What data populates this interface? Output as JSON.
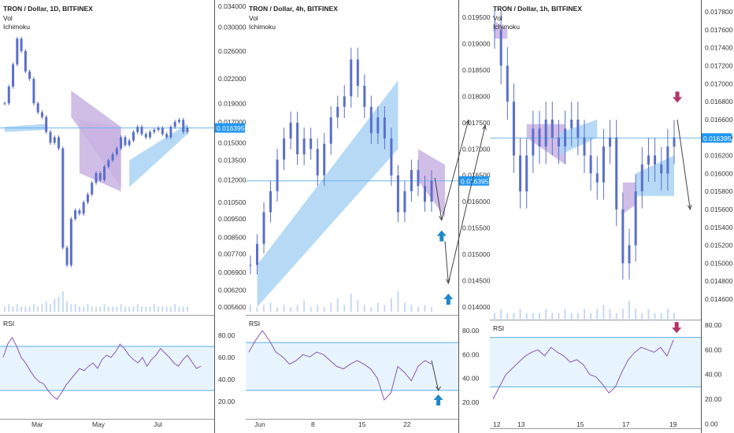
{
  "colors": {
    "candle": "#5b6fc9",
    "cloud_bull": "#a9d4f5",
    "cloud_bear": "#c9b3e3",
    "rsi_line": "#8a55b5",
    "rsi_band": "#e8f4fd",
    "rsi_band_line": "#5aaee8",
    "price_line": "#6fb5ea",
    "price_tag": "#2196f3",
    "up_arrow": "#1e88c8",
    "down_arrow": "#b5336b",
    "volume": "#c7d9f0",
    "grid_text": "#333333",
    "separator": "#555555"
  },
  "chart_data": [
    {
      "type": "line",
      "chart": "candlestick",
      "title": "TRON / Dollar, 1D, BITFINEX",
      "indicators": [
        "Vol",
        "Ichimoku"
      ],
      "price_label": "0.016395",
      "current_price": 0.016395,
      "yticks": [
        "0.034000",
        "0.030000",
        "0.026000",
        "0.022000",
        "0.019000",
        "0.017000",
        "0.015000",
        "0.013500",
        "0.012000",
        "0.010500",
        "0.009500",
        "0.008500",
        "0.007700",
        "0.006900",
        "0.006200",
        "0.005600"
      ],
      "yscale": "log",
      "xticks": [
        "Mar",
        "May",
        "Jul"
      ],
      "close": [
        0.019,
        0.021,
        0.024,
        0.028,
        0.026,
        0.023,
        0.022,
        0.019,
        0.018,
        0.0175,
        0.016,
        0.015,
        0.0155,
        0.0145,
        0.008,
        0.0072,
        0.0095,
        0.01,
        0.0098,
        0.0105,
        0.011,
        0.0118,
        0.0125,
        0.012,
        0.013,
        0.0135,
        0.014,
        0.0145,
        0.0155,
        0.0148,
        0.0152,
        0.016,
        0.0165,
        0.0158,
        0.0155,
        0.016,
        0.0162,
        0.0164,
        0.0158,
        0.0155,
        0.0165,
        0.017,
        0.0172,
        0.016,
        0.0164
      ],
      "cloud": [
        {
          "kind": "bull",
          "x": [
            0,
            10
          ],
          "top": [
            0.0165,
            0.0168
          ],
          "bottom": [
            0.016,
            0.0162
          ]
        },
        {
          "kind": "bear",
          "x": [
            16,
            28
          ],
          "top": [
            0.0205,
            0.0165
          ],
          "bottom": [
            0.0175,
            0.0115
          ]
        },
        {
          "kind": "bear",
          "x": [
            18,
            28
          ],
          "top": [
            0.0172,
            0.0165
          ],
          "bottom": [
            0.0125,
            0.0112
          ]
        },
        {
          "kind": "bull",
          "x": [
            30,
            44
          ],
          "top": [
            0.0135,
            0.0168
          ],
          "bottom": [
            0.0115,
            0.0158
          ]
        }
      ],
      "volume": [
        2,
        3,
        2,
        3,
        2,
        2,
        2,
        3,
        2,
        3,
        4,
        3,
        5,
        6,
        8,
        4,
        3,
        3,
        2,
        2,
        3,
        2,
        2,
        2,
        3,
        2,
        2,
        2,
        3,
        2,
        2,
        2,
        3,
        2,
        2,
        2,
        3,
        2,
        2,
        2,
        2,
        3,
        2,
        2,
        2
      ],
      "rsi": {
        "title": "RSI",
        "yticks": [
          "80.00",
          "60.00",
          "40.00",
          "20.00"
        ],
        "band": [
          30,
          70
        ],
        "values": [
          60,
          72,
          78,
          70,
          60,
          55,
          48,
          42,
          38,
          36,
          30,
          25,
          22,
          28,
          35,
          40,
          45,
          50,
          48,
          52,
          55,
          50,
          58,
          62,
          60,
          65,
          72,
          68,
          62,
          58,
          55,
          60,
          52,
          58,
          62,
          68,
          64,
          60,
          55,
          52,
          58,
          62,
          56,
          50,
          52
        ]
      }
    },
    {
      "type": "line",
      "chart": "candlestick",
      "title": "TRON / Dollar, 4h, BITFINEX",
      "indicators": [
        "Vol",
        "Ichimoku"
      ],
      "price_label": "0.016395",
      "current_price": 0.016395,
      "yticks": [
        "0.019500",
        "0.019000",
        "0.018500",
        "0.018000",
        "0.017500",
        "0.017000",
        "0.016500",
        "0.016000",
        "0.015500",
        "0.015000",
        "0.014500",
        "0.014000"
      ],
      "yscale": "linear",
      "xticks": [
        "Jun",
        "8",
        "15",
        "22"
      ],
      "close": [
        0.0148,
        0.0152,
        0.0158,
        0.0162,
        0.0168,
        0.0172,
        0.0175,
        0.0169,
        0.0172,
        0.017,
        0.0165,
        0.0171,
        0.0176,
        0.0178,
        0.018,
        0.0187,
        0.0182,
        0.0178,
        0.0173,
        0.0176,
        0.0172,
        0.0165,
        0.0158,
        0.0162,
        0.0166,
        0.0163,
        0.016,
        0.0164
      ],
      "cloud": [
        {
          "kind": "bull",
          "x": [
            1,
            22
          ],
          "top": [
            0.0148,
            0.0183
          ],
          "bottom": [
            0.014,
            0.017
          ]
        },
        {
          "kind": "bear",
          "x": [
            25,
            29
          ],
          "top": [
            0.017,
            0.0167
          ],
          "bottom": [
            0.0164,
            0.0157
          ]
        }
      ],
      "annotations": [
        {
          "type": "arrow",
          "from": [
            27.5,
            0.01645
          ],
          "to": [
            28.5,
            0.01565
          ]
        },
        {
          "type": "arrow",
          "from": [
            28.5,
            0.01565
          ],
          "to": [
            32.5,
            0.01755
          ]
        },
        {
          "type": "arrow",
          "from": [
            29,
            0.01525
          ],
          "to": [
            29.5,
            0.01445
          ]
        },
        {
          "type": "arrow",
          "from": [
            29.5,
            0.01445
          ],
          "to": [
            35,
            0.01745
          ]
        },
        {
          "type": "marker",
          "kind": "up",
          "at": [
            28.5,
            0.01535
          ]
        },
        {
          "type": "marker",
          "kind": "up",
          "at": [
            29.5,
            0.01415
          ]
        }
      ],
      "volume": [
        3,
        2,
        3,
        4,
        2,
        3,
        2,
        3,
        5,
        2,
        3,
        2,
        4,
        6,
        3,
        8,
        5,
        3,
        2,
        4,
        3,
        6,
        9,
        4,
        3,
        2,
        3,
        2
      ],
      "rsi": {
        "title": "RSI",
        "yticks": [
          "80.00",
          "60.00",
          "40.00",
          "20.00"
        ],
        "band": [
          30,
          70
        ],
        "values": [
          62,
          72,
          80,
          72,
          62,
          58,
          52,
          55,
          60,
          58,
          62,
          60,
          55,
          50,
          48,
          52,
          55,
          52,
          48,
          40,
          22,
          28,
          50,
          45,
          38,
          50,
          55,
          52
        ],
        "annotations": [
          {
            "type": "arrow",
            "from": [
              27,
              55
            ],
            "to": [
              28,
              30
            ]
          },
          {
            "type": "marker",
            "kind": "up",
            "at": [
              28,
              22
            ]
          }
        ]
      }
    },
    {
      "type": "line",
      "chart": "candlestick",
      "title": "TRON / Dollar, 1h, BITFINEX",
      "indicators": [
        "Vol",
        "Ichimoku"
      ],
      "price_label": "0.016395",
      "current_price": 0.016395,
      "yticks": [
        "0.017800",
        "0.017600",
        "0.017400",
        "0.017200",
        "0.017000",
        "0.016800",
        "0.016600",
        "0.016400",
        "0.016200",
        "0.016000",
        "0.015800",
        "0.015600",
        "0.015400",
        "0.015200",
        "0.015000",
        "0.014800",
        "0.014600"
      ],
      "yscale": "linear",
      "xticks": [
        "12",
        "13",
        "15",
        "17",
        "19"
      ],
      "close": [
        0.0176,
        0.0172,
        0.0168,
        0.0162,
        0.0158,
        0.0162,
        0.0165,
        0.0163,
        0.0166,
        0.0164,
        0.0163,
        0.0165,
        0.0166,
        0.0164,
        0.0162,
        0.016,
        0.0159,
        0.0163,
        0.0164,
        0.0156,
        0.015,
        0.0152,
        0.0158,
        0.0161,
        0.0162,
        0.0161,
        0.016,
        0.0163,
        0.0164
      ],
      "cloud": [
        {
          "kind": "bear",
          "x": [
            0,
            2
          ],
          "top": [
            0.0177,
            0.0176
          ],
          "bottom": [
            0.0175,
            0.0175
          ]
        },
        {
          "kind": "bear",
          "x": [
            5,
            11
          ],
          "top": [
            0.01655,
            0.01655
          ],
          "bottom": [
            0.0164,
            0.0161
          ]
        },
        {
          "kind": "bull",
          "x": [
            10,
            16
          ],
          "top": [
            0.01645,
            0.0166
          ],
          "bottom": [
            0.0162,
            0.0164
          ]
        },
        {
          "kind": "bear",
          "x": [
            20,
            22
          ],
          "top": [
            0.0159,
            0.0159
          ],
          "bottom": [
            0.01555,
            0.01565
          ]
        },
        {
          "kind": "bull",
          "x": [
            22,
            28
          ],
          "top": [
            0.016,
            0.0162
          ],
          "bottom": [
            0.01575,
            0.01575
          ]
        }
      ],
      "annotations": [
        {
          "type": "arrow",
          "from": [
            28.5,
            0.0166
          ],
          "to": [
            30.5,
            0.0156
          ]
        },
        {
          "type": "marker",
          "kind": "down",
          "at": [
            28.5,
            0.01685
          ]
        }
      ],
      "volume": [
        2,
        3,
        2,
        2,
        3,
        2,
        2,
        2,
        3,
        2,
        2,
        3,
        2,
        2,
        3,
        2,
        3,
        4,
        3,
        2,
        3,
        5,
        3,
        2,
        3,
        2,
        2,
        3,
        2
      ],
      "rsi": {
        "title": "RSI",
        "yticks": [
          "80.00",
          "60.00",
          "40.00",
          "20.00",
          "0.00"
        ],
        "band": [
          30,
          70
        ],
        "values": [
          20,
          30,
          40,
          45,
          50,
          55,
          58,
          60,
          55,
          62,
          58,
          55,
          50,
          52,
          48,
          40,
          38,
          32,
          25,
          30,
          42,
          52,
          58,
          62,
          60,
          58,
          62,
          55,
          68
        ],
        "annotations": [
          {
            "type": "marker",
            "kind": "down",
            "at": [
              28.5,
              78
            ]
          }
        ]
      }
    }
  ]
}
